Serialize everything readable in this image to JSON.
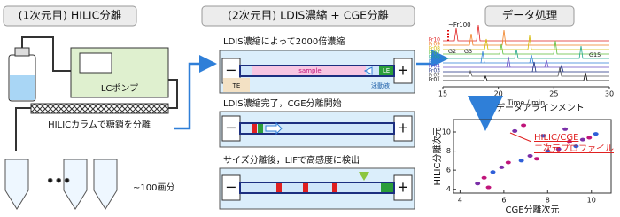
{
  "panel1": {
    "title": "(1次元目) HILIC分離",
    "pump_label": "LCポンプ",
    "column_label": "HILICカラムで糖鎖を分離",
    "fractions_label": "~100画分"
  },
  "panel2": {
    "title": "(2次元目) LDIS濃縮 + CGE分離",
    "minus": "−",
    "plus": "+",
    "steps": [
      {
        "caption": "LDIS濃縮によって2000倍濃縮",
        "sample": "sample",
        "le": "LE",
        "buffer": "泳動液",
        "te": "TE"
      },
      {
        "caption": "LDIS濃縮完了，CGE分離開始"
      },
      {
        "caption": "サイズ分離後，LIFで高感度に検出"
      }
    ]
  },
  "panel3": {
    "title": "データ処理",
    "traces": {
      "top_label": "~Fr100",
      "fractions": [
        "Fr10",
        "Fr09",
        "Fr08",
        "Fr07",
        "Fr06",
        "Fr05",
        "Fr04",
        "Fr03",
        "Fr02",
        "Fr01"
      ],
      "peaks": [
        "G2",
        "G3",
        "G15"
      ],
      "xlim": [
        15,
        30
      ],
      "xticks": [
        15,
        20,
        25,
        30
      ],
      "xlabel": "Time / min"
    },
    "alignment_label": "データアラインメント",
    "scatter": {
      "type": "scatter",
      "xlabel": "CGE分離次元",
      "ylabel": "HILIC分離次元",
      "xlim": [
        3.7,
        10.9
      ],
      "ylim": [
        3.6,
        11.3
      ],
      "xticks": [
        4,
        6,
        8,
        10
      ],
      "yticks": [
        4,
        6,
        8,
        10
      ],
      "x": [
        4.8,
        5.1,
        5.5,
        5.9,
        6.2,
        6.8,
        7.2,
        7.5,
        8.0,
        8.5,
        9.0,
        9.3,
        9.6,
        9.9,
        10.2,
        6.5,
        6.9,
        7.8,
        8.8,
        5.3
      ],
      "y": [
        4.6,
        5.2,
        5.8,
        6.3,
        6.8,
        7.0,
        7.5,
        7.2,
        8.0,
        8.2,
        9.0,
        8.5,
        9.2,
        9.4,
        9.8,
        10.1,
        10.7,
        9.6,
        10.3,
        4.2
      ],
      "annotation": [
        "HILIC/CGE",
        "二次元プロファイル"
      ]
    }
  }
}
